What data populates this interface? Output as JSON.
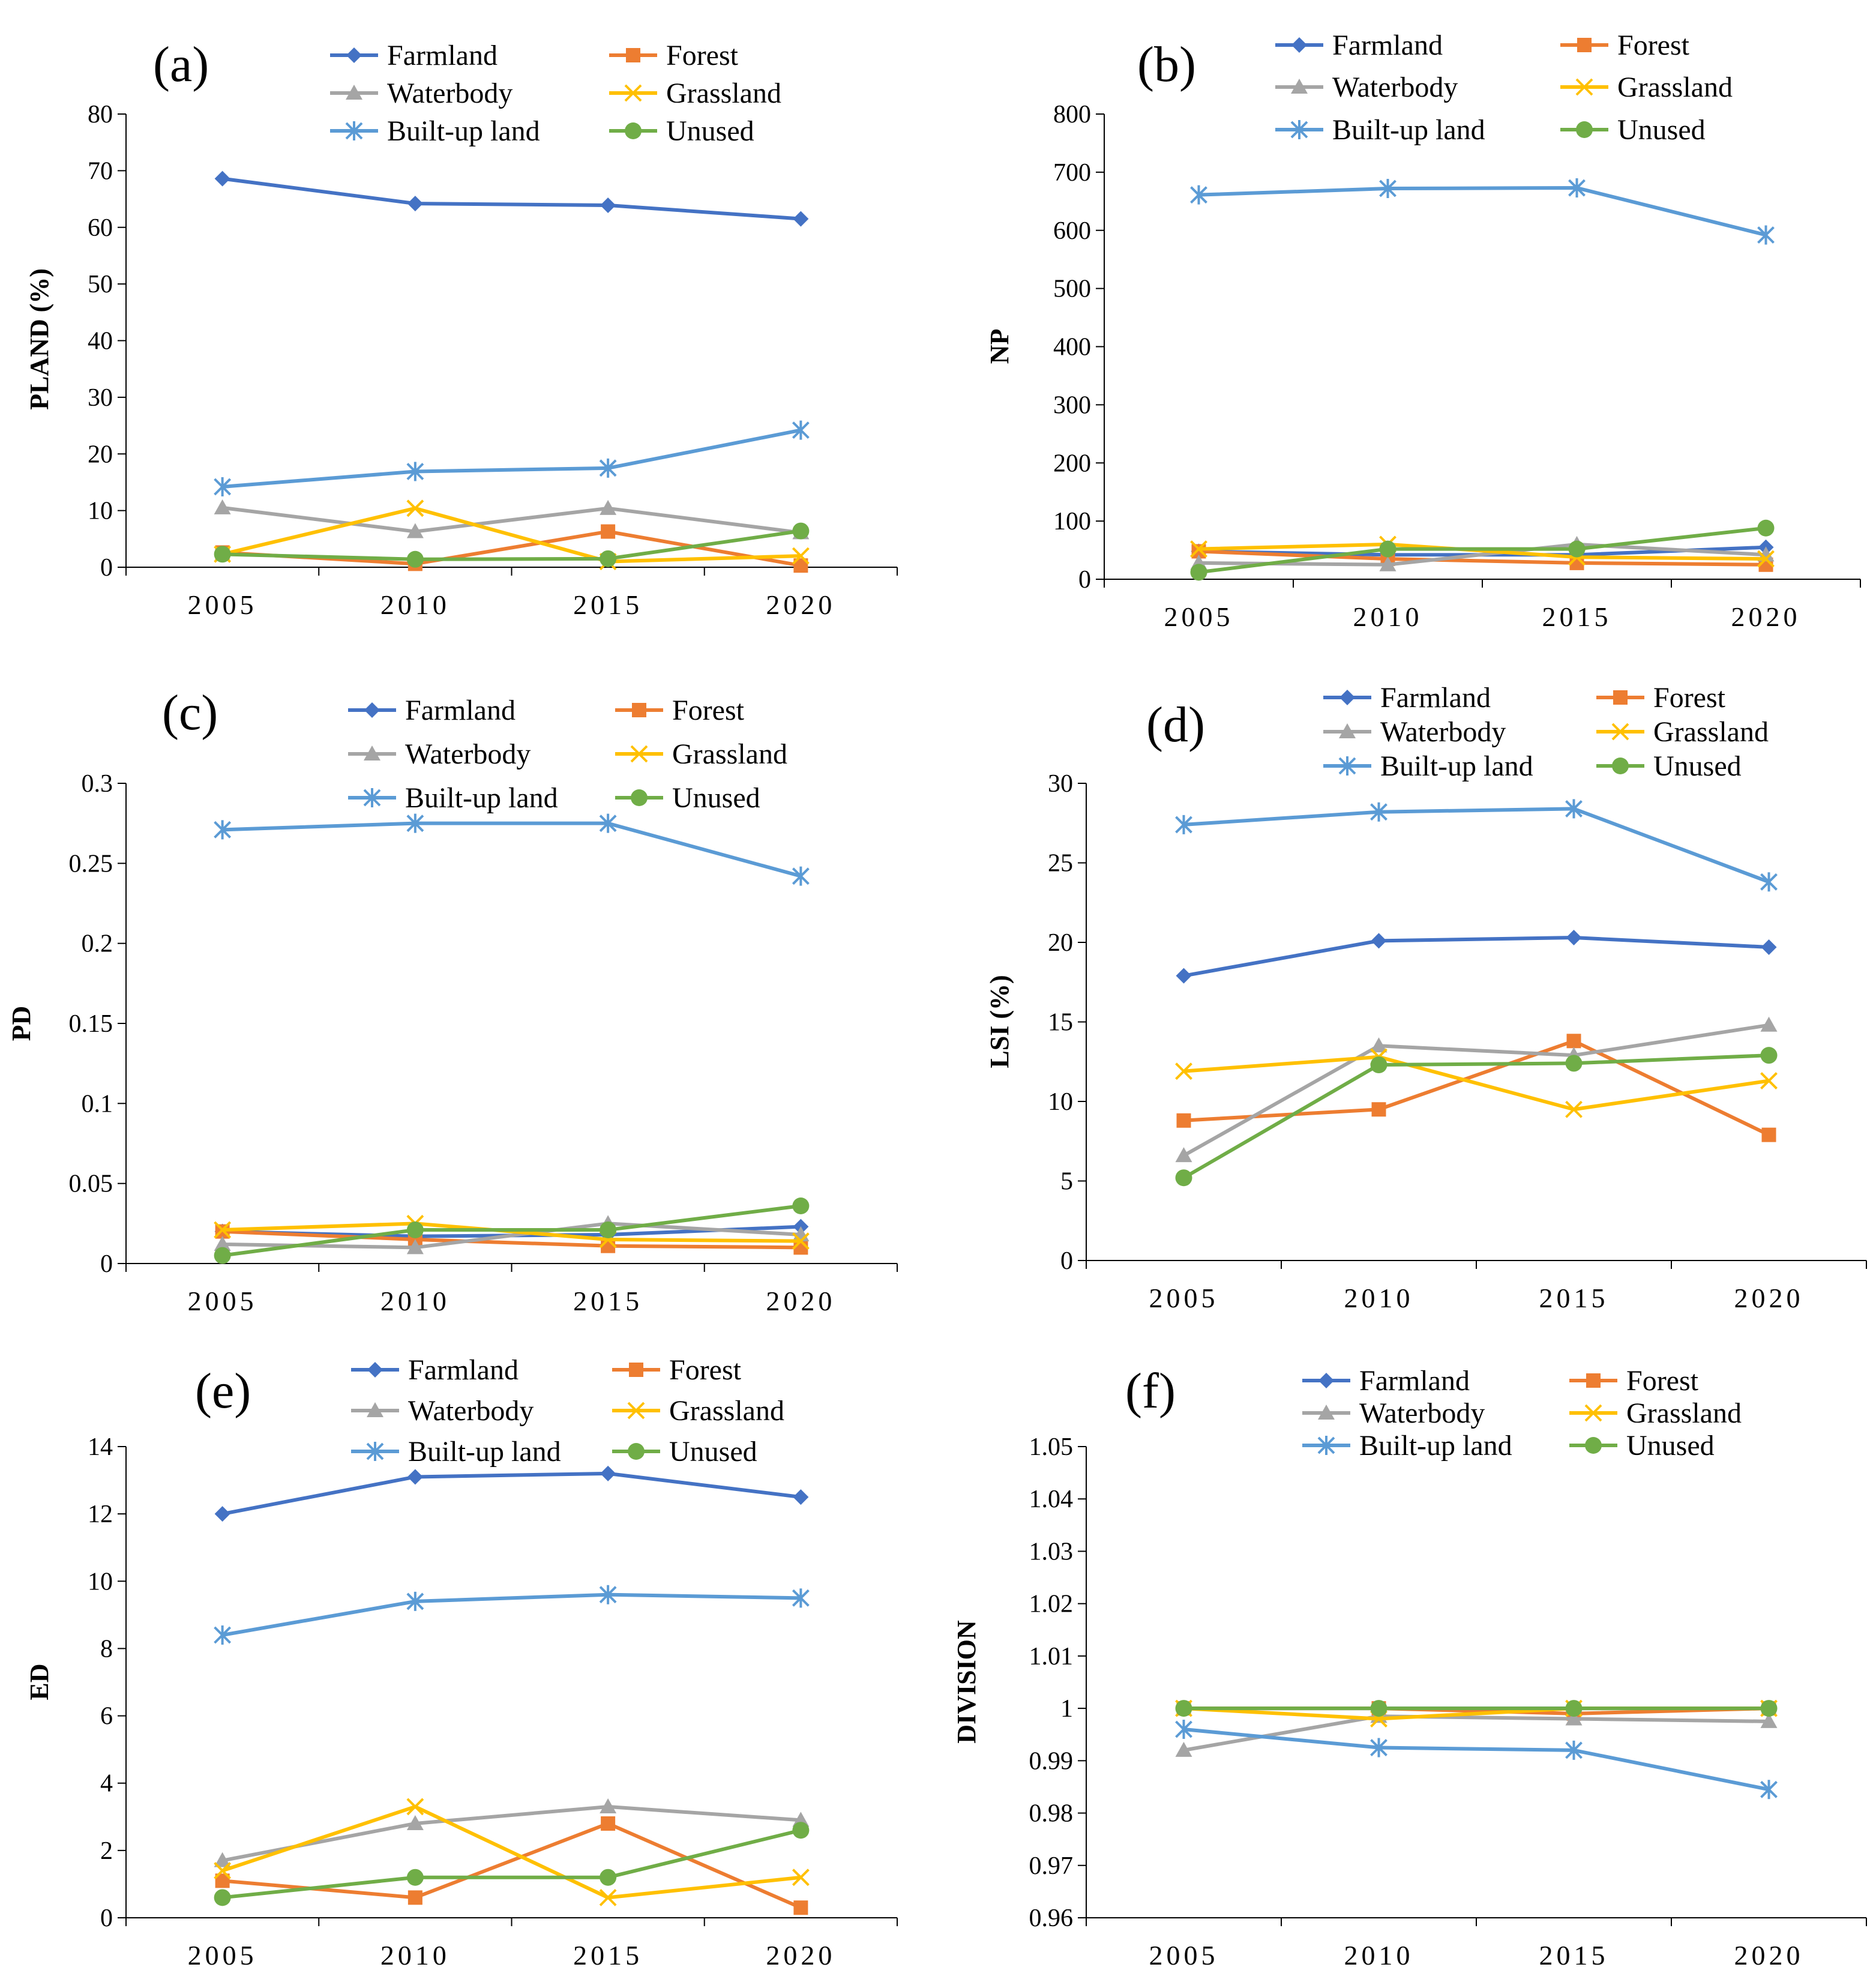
{
  "colors": {
    "Farmland": "#4472c4",
    "Forest": "#ed7d31",
    "Waterbody": "#a5a5a5",
    "Grassland": "#ffc000",
    "Built-up land": "#5b9bd5",
    "Unused": "#70ad47"
  },
  "markers": {
    "Farmland": "diamond",
    "Forest": "square",
    "Waterbody": "triangle",
    "Grassland": "x-mark",
    "Built-up land": "star-mark",
    "Unused": "circle"
  },
  "chart_data": [
    {
      "type": "line",
      "panel": "(a)",
      "ylabel": "PLAND (%)",
      "categories": [
        "2005",
        "2010",
        "2015",
        "2020"
      ],
      "ylim": [
        0,
        80
      ],
      "yticks": [
        "0",
        "10",
        "20",
        "30",
        "40",
        "50",
        "60",
        "70",
        "80"
      ],
      "legend": [
        "Farmland",
        "Forest",
        "Waterbody",
        "Grassland",
        "Built-up land",
        "Unused"
      ],
      "series": [
        {
          "name": "Farmland",
          "values": [
            68.6,
            64.2,
            63.9,
            61.5
          ]
        },
        {
          "name": "Forest",
          "values": [
            2.6,
            0.6,
            6.3,
            0.3
          ]
        },
        {
          "name": "Waterbody",
          "values": [
            10.5,
            6.3,
            10.4,
            6.1
          ]
        },
        {
          "name": "Grassland",
          "values": [
            2.3,
            10.4,
            1.0,
            2.0
          ]
        },
        {
          "name": "Built-up land",
          "values": [
            14.2,
            16.9,
            17.5,
            24.2
          ]
        },
        {
          "name": "Unused",
          "values": [
            2.3,
            1.4,
            1.5,
            6.4
          ]
        }
      ]
    },
    {
      "type": "line",
      "panel": "(b)",
      "ylabel": "NP",
      "categories": [
        "2005",
        "2010",
        "2015",
        "2020"
      ],
      "ylim": [
        0,
        800
      ],
      "yticks": [
        "0",
        "100",
        "200",
        "300",
        "400",
        "500",
        "600",
        "700",
        "800"
      ],
      "legend": [
        "Farmland",
        "Forest",
        "Waterbody",
        "Grassland",
        "Built-up land",
        "Unused"
      ],
      "series": [
        {
          "name": "Farmland",
          "values": [
            48,
            42,
            42,
            55
          ]
        },
        {
          "name": "Forest",
          "values": [
            48,
            35,
            28,
            25
          ]
        },
        {
          "name": "Waterbody",
          "values": [
            28,
            25,
            60,
            42
          ]
        },
        {
          "name": "Grassland",
          "values": [
            52,
            60,
            38,
            35
          ]
        },
        {
          "name": "Built-up land",
          "values": [
            661,
            672,
            673,
            592
          ]
        },
        {
          "name": "Unused",
          "values": [
            12,
            52,
            52,
            88
          ]
        }
      ]
    },
    {
      "type": "line",
      "panel": "(c)",
      "ylabel": "PD",
      "categories": [
        "2005",
        "2010",
        "2015",
        "2020"
      ],
      "ylim": [
        0,
        0.3
      ],
      "yticks": [
        "0",
        "0.05",
        "0.1",
        "0.15",
        "0.2",
        "0.25",
        "0.3"
      ],
      "legend": [
        "Farmland",
        "Forest",
        "Waterbody",
        "Grassland",
        "Built-up land",
        "Unused"
      ],
      "series": [
        {
          "name": "Farmland",
          "values": [
            0.02,
            0.017,
            0.018,
            0.023
          ]
        },
        {
          "name": "Forest",
          "values": [
            0.02,
            0.015,
            0.011,
            0.01
          ]
        },
        {
          "name": "Waterbody",
          "values": [
            0.012,
            0.01,
            0.025,
            0.018
          ]
        },
        {
          "name": "Grassland",
          "values": [
            0.021,
            0.025,
            0.015,
            0.014
          ]
        },
        {
          "name": "Built-up land",
          "values": [
            0.271,
            0.275,
            0.275,
            0.242
          ]
        },
        {
          "name": "Unused",
          "values": [
            0.005,
            0.021,
            0.021,
            0.036
          ]
        }
      ]
    },
    {
      "type": "line",
      "panel": "(d)",
      "ylabel": "LSI (%)",
      "categories": [
        "2005",
        "2010",
        "2015",
        "2020"
      ],
      "ylim": [
        0,
        30
      ],
      "yticks": [
        "0",
        "5",
        "10",
        "15",
        "20",
        "25",
        "30"
      ],
      "legend": [
        "Farmland",
        "Forest",
        "Waterbody",
        "Grassland",
        "Built-up land",
        "Unused"
      ],
      "series": [
        {
          "name": "Farmland",
          "values": [
            17.9,
            20.1,
            20.3,
            19.7
          ]
        },
        {
          "name": "Forest",
          "values": [
            8.8,
            9.5,
            13.8,
            7.9
          ]
        },
        {
          "name": "Waterbody",
          "values": [
            6.6,
            13.5,
            12.9,
            14.8
          ]
        },
        {
          "name": "Grassland",
          "values": [
            11.9,
            12.8,
            9.5,
            11.3
          ]
        },
        {
          "name": "Built-up land",
          "values": [
            27.4,
            28.2,
            28.4,
            23.8
          ]
        },
        {
          "name": "Unused",
          "values": [
            5.2,
            12.3,
            12.4,
            12.9
          ]
        }
      ]
    },
    {
      "type": "line",
      "panel": "(e)",
      "ylabel": "ED",
      "categories": [
        "2005",
        "2010",
        "2015",
        "2020"
      ],
      "ylim": [
        0,
        14
      ],
      "yticks": [
        "0",
        "2",
        "4",
        "6",
        "8",
        "10",
        "12",
        "14"
      ],
      "legend": [
        "Farmland",
        "Forest",
        "Waterbody",
        "Grassland",
        "Built-up land",
        "Unused"
      ],
      "series": [
        {
          "name": "Farmland",
          "values": [
            12.0,
            13.1,
            13.2,
            12.5
          ]
        },
        {
          "name": "Forest",
          "values": [
            1.1,
            0.6,
            2.8,
            0.3
          ]
        },
        {
          "name": "Waterbody",
          "values": [
            1.7,
            2.8,
            3.3,
            2.9
          ]
        },
        {
          "name": "Grassland",
          "values": [
            1.4,
            3.3,
            0.6,
            1.2
          ]
        },
        {
          "name": "Built-up land",
          "values": [
            8.4,
            9.4,
            9.6,
            9.5
          ]
        },
        {
          "name": "Unused",
          "values": [
            0.6,
            1.2,
            1.2,
            2.6
          ]
        }
      ]
    },
    {
      "type": "line",
      "panel": "(f)",
      "ylabel": "DIVISION",
      "categories": [
        "2005",
        "2010",
        "2015",
        "2020"
      ],
      "ylim": [
        0.96,
        1.05
      ],
      "yticks": [
        "0.96",
        "0.97",
        "0.98",
        "0.99",
        "1",
        "1.01",
        "1.02",
        "1.03",
        "1.04",
        "1.05"
      ],
      "legend": [
        "Farmland",
        "Forest",
        "Waterbody",
        "Grassland",
        "Built-up land",
        "Unused"
      ],
      "series": [
        {
          "name": "Farmland",
          "values": [
            1.0,
            1.0,
            1.0,
            1.0
          ]
        },
        {
          "name": "Forest",
          "values": [
            1.0,
            1.0,
            0.999,
            1.0
          ]
        },
        {
          "name": "Waterbody",
          "values": [
            0.992,
            0.9985,
            0.998,
            0.9975
          ]
        },
        {
          "name": "Grassland",
          "values": [
            1.0,
            0.998,
            1.0,
            1.0
          ]
        },
        {
          "name": "Built-up land",
          "values": [
            0.996,
            0.9925,
            0.992,
            0.9845
          ]
        },
        {
          "name": "Unused",
          "values": [
            1.0,
            1.0,
            1.0,
            1.0
          ]
        }
      ]
    }
  ]
}
